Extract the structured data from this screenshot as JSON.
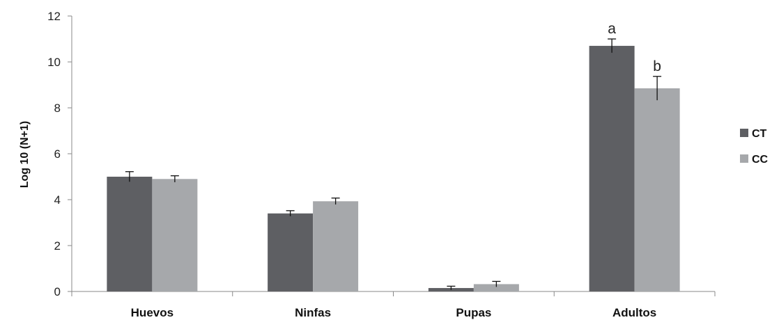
{
  "chart_data": {
    "type": "bar",
    "categories": [
      "Huevos",
      "Ninfas",
      "Pupas",
      "Adultos"
    ],
    "series": [
      {
        "name": "CT",
        "color": "#5e5f63",
        "values": [
          5.0,
          3.4,
          0.15,
          10.7
        ],
        "error": [
          0.22,
          0.12,
          0.08,
          0.3
        ]
      },
      {
        "name": "CC",
        "color": "#a6a8ab",
        "values": [
          4.9,
          3.93,
          0.32,
          8.85
        ],
        "error": [
          0.14,
          0.14,
          0.12,
          0.52
        ]
      }
    ],
    "annotations": [
      {
        "category": "Adultos",
        "series": "CT",
        "text": "a"
      },
      {
        "category": "Adultos",
        "series": "CC",
        "text": "b"
      }
    ],
    "ylabel": "Log 10 (N+1)",
    "xlabel": "",
    "ylim": [
      0,
      12
    ],
    "yticks": [
      0,
      2,
      4,
      6,
      8,
      10,
      12
    ],
    "grid": false,
    "legend_position": "right"
  }
}
